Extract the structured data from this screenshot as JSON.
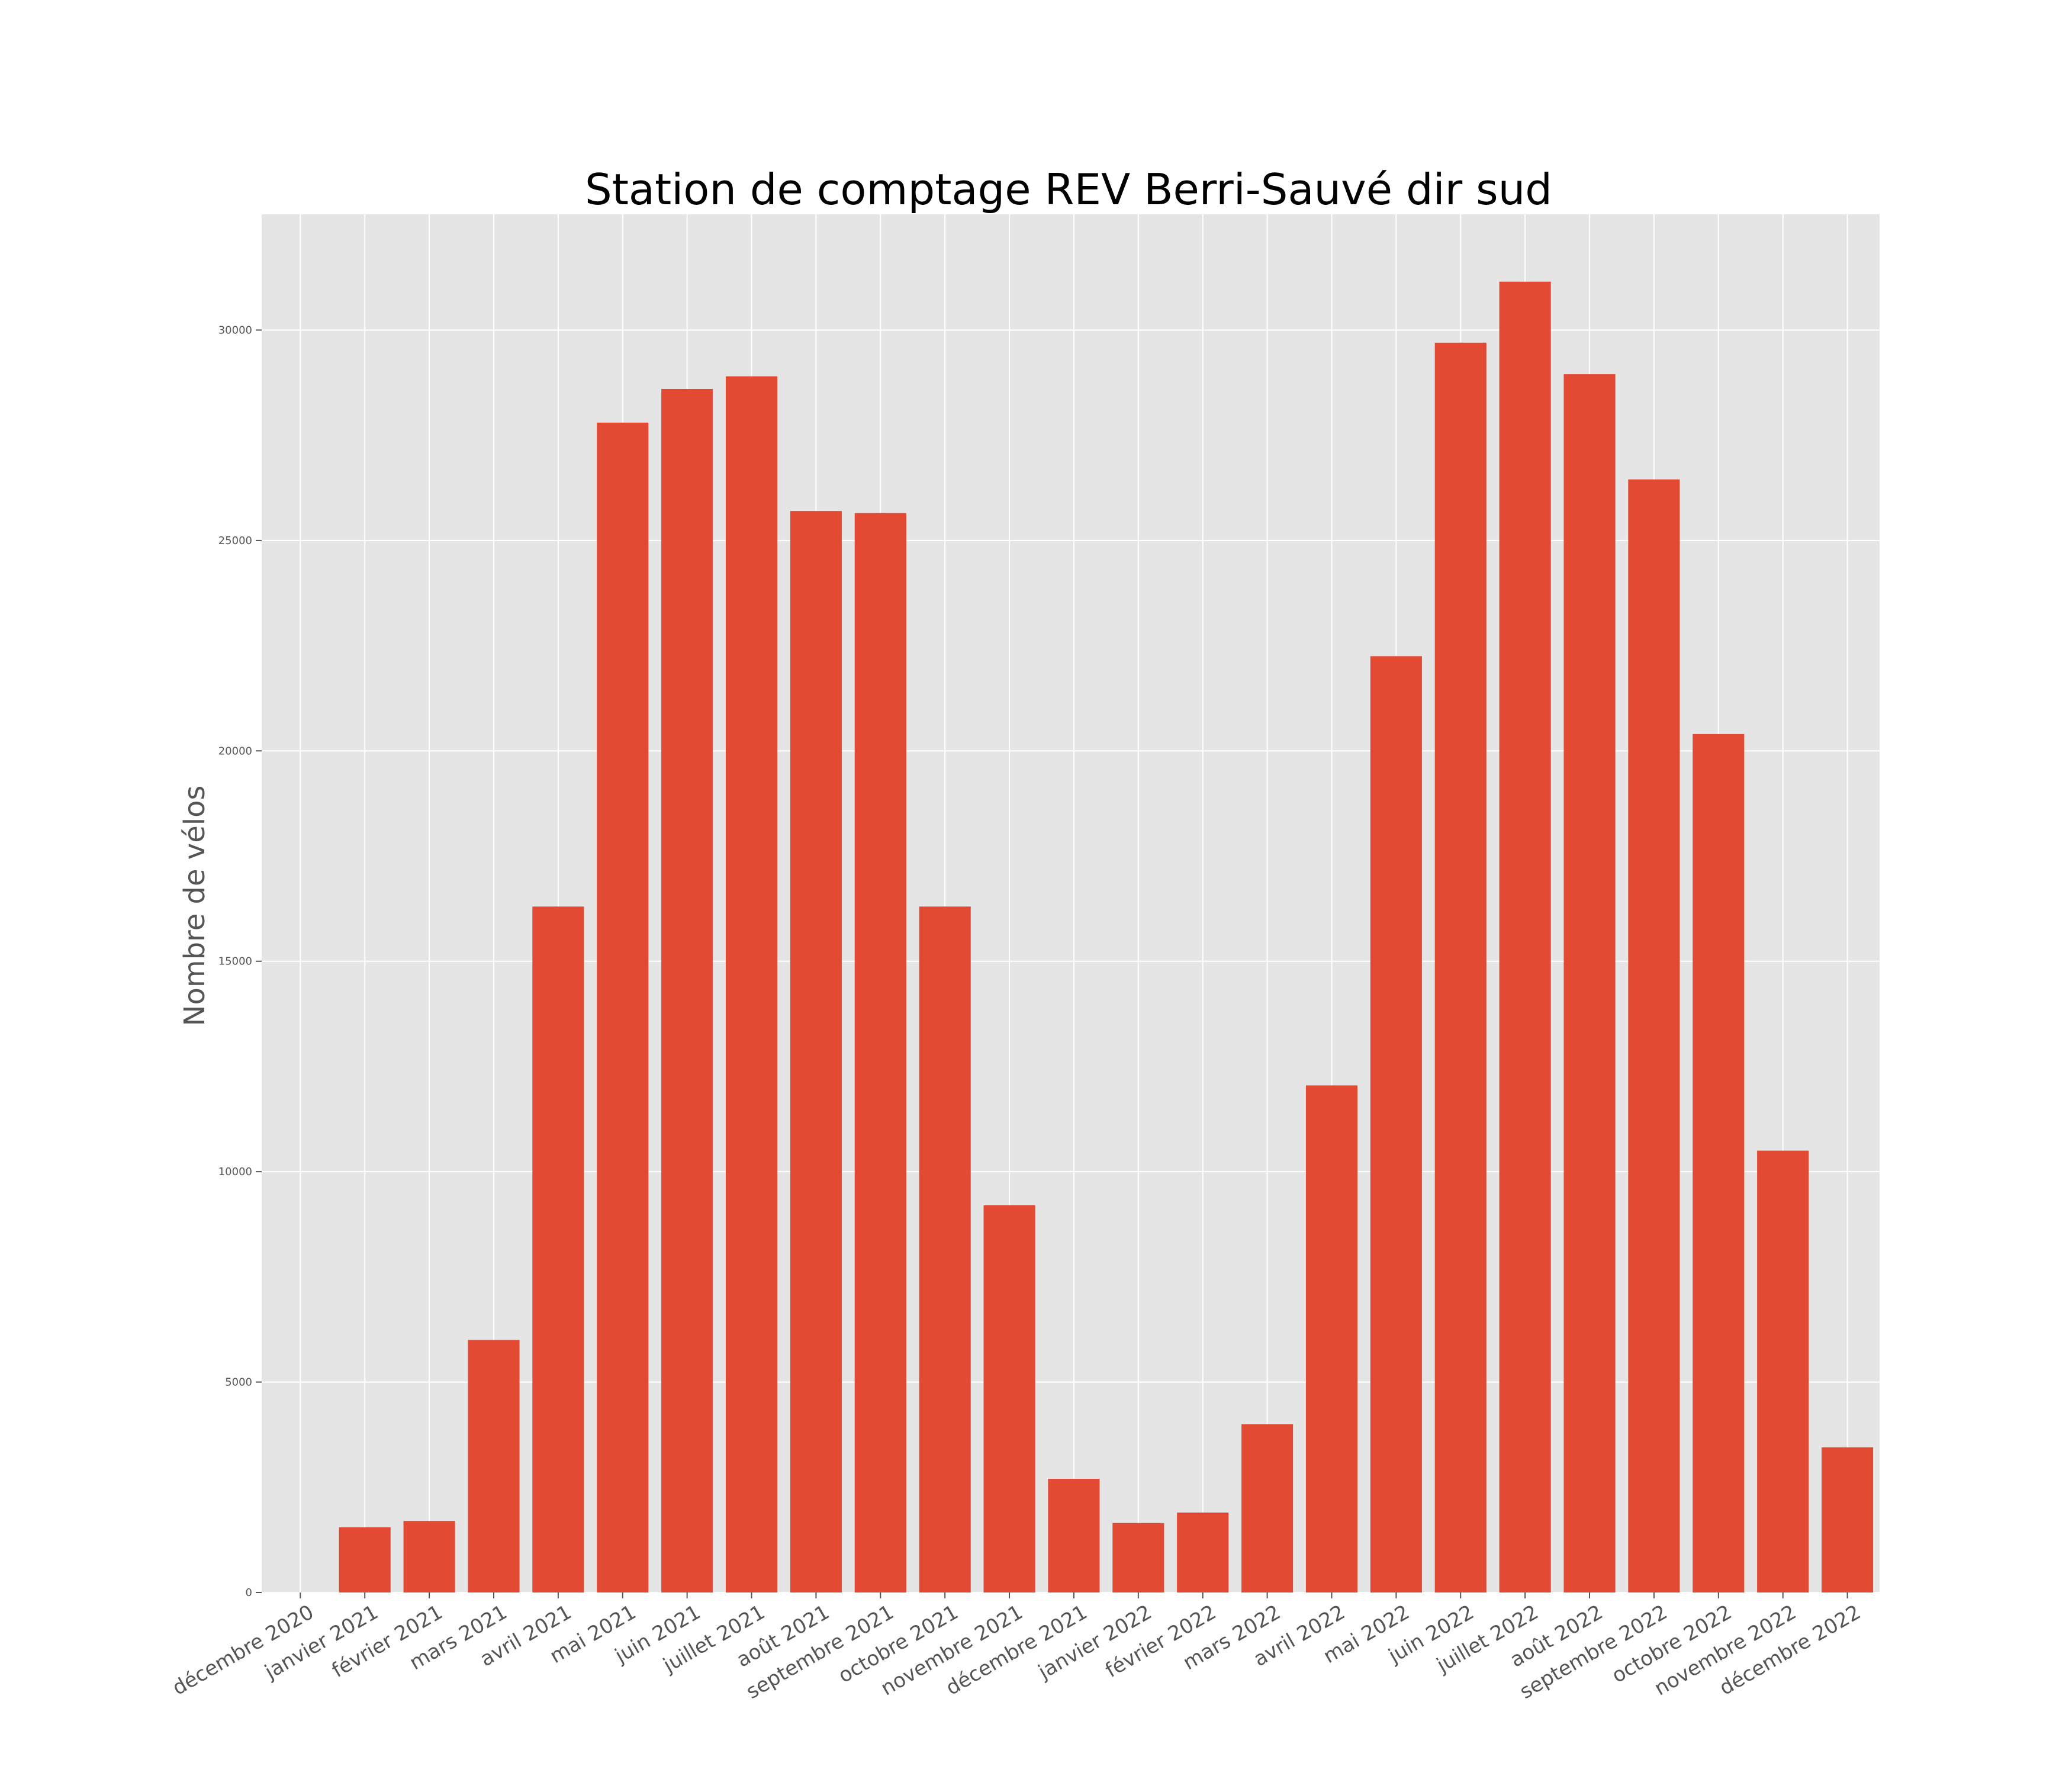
{
  "chart_data": {
    "type": "bar",
    "title": "Station de comptage REV Berri-Sauvé dir sud",
    "xlabel": "",
    "ylabel": "Nombre de vélos",
    "categories": [
      "décembre 2020",
      "janvier 2021",
      "février 2021",
      "mars 2021",
      "avril 2021",
      "mai 2021",
      "juin 2021",
      "juillet 2021",
      "août 2021",
      "septembre 2021",
      "octobre 2021",
      "novembre 2021",
      "décembre 2021",
      "janvier 2022",
      "février 2022",
      "mars 2022",
      "avril 2022",
      "mai 2022",
      "juin 2022",
      "juillet 2022",
      "août 2022",
      "septembre 2022",
      "octobre 2022",
      "novembre 2022",
      "décembre 2022"
    ],
    "values": [
      0,
      1550,
      1700,
      6000,
      16300,
      27800,
      28600,
      28900,
      25700,
      25650,
      16300,
      9200,
      2700,
      1650,
      1900,
      4000,
      12050,
      22250,
      29700,
      31150,
      28950,
      26450,
      20400,
      10500,
      3450
    ],
    "yticks": [
      0,
      5000,
      10000,
      15000,
      20000,
      25000,
      30000
    ],
    "ylim": [
      0,
      32750
    ],
    "grid": true,
    "legend": "none",
    "colors": {
      "bar": "#E24A33",
      "plot_background": "#E5E5E5",
      "grid": "#FFFFFF",
      "text": "#555555",
      "title": "#000000"
    }
  }
}
